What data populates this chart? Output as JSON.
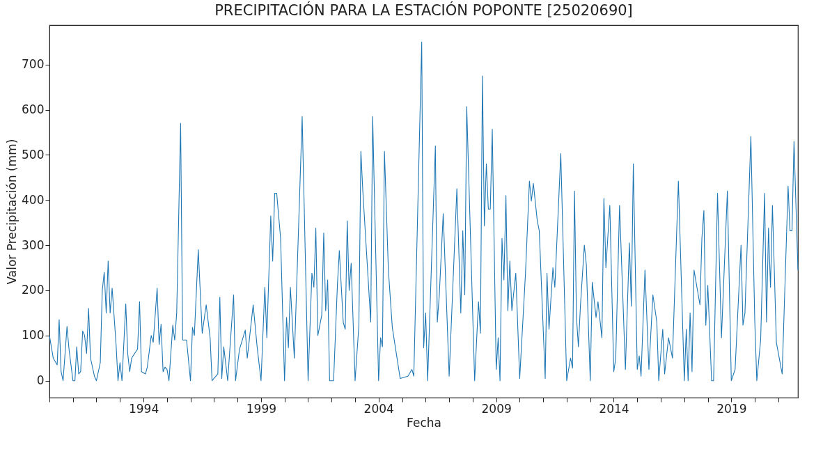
{
  "chart_data": {
    "type": "line",
    "title": "PRECIPITACIÓN PARA LA ESTACIÓN POPONTE [25020690]",
    "xlabel": "Fecha",
    "ylabel": "Valor Precipitación (mm)",
    "color": "#1f77b4",
    "grid": false,
    "xlim": [
      "1990-01",
      "2021-11"
    ],
    "ylim": [
      -37.5,
      787.5
    ],
    "xticks": [
      {
        "value": "1990",
        "label": null
      },
      {
        "value": "1991",
        "label": null
      },
      {
        "value": "1992",
        "label": null
      },
      {
        "value": "1993",
        "label": null
      },
      {
        "value": "1994",
        "label": "1994"
      },
      {
        "value": "1995",
        "label": null
      },
      {
        "value": "1996",
        "label": null
      },
      {
        "value": "1997",
        "label": null
      },
      {
        "value": "1998",
        "label": null
      },
      {
        "value": "1999",
        "label": "1999"
      },
      {
        "value": "2000",
        "label": null
      },
      {
        "value": "2001",
        "label": null
      },
      {
        "value": "2002",
        "label": null
      },
      {
        "value": "2003",
        "label": null
      },
      {
        "value": "2004",
        "label": "2004"
      },
      {
        "value": "2005",
        "label": null
      },
      {
        "value": "2006",
        "label": null
      },
      {
        "value": "2007",
        "label": null
      },
      {
        "value": "2008",
        "label": null
      },
      {
        "value": "2009",
        "label": "2009"
      },
      {
        "value": "2010",
        "label": null
      },
      {
        "value": "2011",
        "label": null
      },
      {
        "value": "2012",
        "label": null
      },
      {
        "value": "2013",
        "label": null
      },
      {
        "value": "2014",
        "label": "2014"
      },
      {
        "value": "2015",
        "label": null
      },
      {
        "value": "2016",
        "label": null
      },
      {
        "value": "2017",
        "label": null
      },
      {
        "value": "2018",
        "label": null
      },
      {
        "value": "2019",
        "label": "2019"
      },
      {
        "value": "2020",
        "label": null
      },
      {
        "value": "2021",
        "label": null
      }
    ],
    "yticks": [
      0,
      100,
      200,
      300,
      400,
      500,
      600,
      700
    ],
    "x": [
      "1990-01",
      "1990-03",
      "1990-05",
      "1990-06",
      "1990-07",
      "1990-08",
      "1990-10",
      "1990-11",
      "1991-01",
      "1991-02",
      "1991-03",
      "1991-04",
      "1991-05",
      "1991-06",
      "1991-07",
      "1991-08",
      "1991-09",
      "1991-10",
      "1991-12",
      "1992-01",
      "1992-03",
      "1992-04",
      "1992-05",
      "1992-06",
      "1992-07",
      "1992-08",
      "1992-09",
      "1992-11",
      "1992-12",
      "1993-01",
      "1993-02",
      "1993-04",
      "1993-05",
      "1993-06",
      "1993-07",
      "1993-10",
      "1993-11",
      "1993-12",
      "1994-02",
      "1994-03",
      "1994-05",
      "1994-06",
      "1994-08",
      "1994-09",
      "1994-10",
      "1994-11",
      "1994-12",
      "1995-01",
      "1995-02",
      "1995-04",
      "1995-05",
      "1995-06",
      "1995-08",
      "1995-09",
      "1995-11",
      "1996-01",
      "1996-02",
      "1996-03",
      "1996-05",
      "1996-07",
      "1996-09",
      "1996-11",
      "1996-12",
      "1997-03",
      "1997-04",
      "1997-05",
      "1997-06",
      "1997-08",
      "1997-11",
      "1997-12",
      "1998-02",
      "1998-05",
      "1998-06",
      "1998-09",
      "1998-11",
      "1999-01",
      "1999-03",
      "1999-04",
      "1999-06",
      "1999-07",
      "1999-08",
      "1999-09",
      "1999-11",
      "2000-01",
      "2000-02",
      "2000-03",
      "2000-04",
      "2000-06",
      "2000-10",
      "2001-01",
      "2001-03",
      "2001-04",
      "2001-05",
      "2001-06",
      "2001-08",
      "2001-09",
      "2001-10",
      "2001-11",
      "2001-12",
      "2002-02",
      "2002-04",
      "2002-05",
      "2002-07",
      "2002-08",
      "2002-09",
      "2002-10",
      "2002-11",
      "2003-01",
      "2003-03",
      "2003-04",
      "2003-05",
      "2003-09",
      "2003-10",
      "2004-01",
      "2004-02",
      "2004-03",
      "2004-04",
      "2004-06",
      "2004-08",
      "2004-12",
      "2005-04",
      "2005-06",
      "2005-07",
      "2005-11",
      "2005-12",
      "2006-01",
      "2006-02",
      "2006-06",
      "2006-07",
      "2006-08",
      "2006-10",
      "2007-01",
      "2007-05",
      "2007-07",
      "2007-08",
      "2007-09",
      "2007-10",
      "2008-02",
      "2008-04",
      "2008-05",
      "2008-06",
      "2008-07",
      "2008-08",
      "2008-09",
      "2008-10",
      "2008-11",
      "2009-01",
      "2009-02",
      "2009-03",
      "2009-04",
      "2009-05",
      "2009-06",
      "2009-07",
      "2009-08",
      "2009-09",
      "2009-11",
      "2010-01",
      "2010-04",
      "2010-06",
      "2010-07",
      "2010-08",
      "2010-10",
      "2010-11",
      "2011-02",
      "2011-03",
      "2011-04",
      "2011-06",
      "2011-07",
      "2011-10",
      "2012-01",
      "2012-03",
      "2012-04",
      "2012-05",
      "2012-06",
      "2012-07",
      "2012-08",
      "2012-10",
      "2012-11",
      "2013-01",
      "2013-02",
      "2013-04",
      "2013-05",
      "2013-07",
      "2013-08",
      "2013-09",
      "2013-11",
      "2014-01",
      "2014-02",
      "2014-04",
      "2014-07",
      "2014-09",
      "2014-10",
      "2014-11",
      "2015-01",
      "2015-02",
      "2015-03",
      "2015-05",
      "2015-07",
      "2015-09",
      "2015-11",
      "2015-12",
      "2016-02",
      "2016-03",
      "2016-05",
      "2016-07",
      "2016-10",
      "2017-01",
      "2017-02",
      "2017-03",
      "2017-04",
      "2017-05",
      "2017-06",
      "2017-09",
      "2017-10",
      "2017-11",
      "2017-12",
      "2018-01",
      "2018-03",
      "2018-04",
      "2018-06",
      "2018-08",
      "2018-11",
      "2019-01",
      "2019-03",
      "2019-06",
      "2019-07",
      "2019-08",
      "2019-11",
      "2020-01",
      "2020-02",
      "2020-04",
      "2020-06",
      "2020-07",
      "2020-08",
      "2020-09",
      "2020-10",
      "2020-12",
      "2021-03",
      "2021-06",
      "2021-07",
      "2021-08",
      "2021-09",
      "2021-11"
    ],
    "values": [
      100,
      50,
      35,
      135,
      20,
      0,
      120,
      70,
      0,
      0,
      75,
      15,
      20,
      110,
      100,
      60,
      160,
      50,
      10,
      0,
      40,
      200,
      240,
      150,
      265,
      150,
      205,
      80,
      0,
      40,
      0,
      170,
      60,
      20,
      50,
      70,
      175,
      20,
      15,
      30,
      100,
      85,
      205,
      80,
      125,
      20,
      30,
      25,
      0,
      123,
      90,
      150,
      570,
      90,
      90,
      0,
      118,
      100,
      290,
      105,
      168,
      95,
      0,
      15,
      185,
      5,
      75,
      0,
      190,
      0,
      70,
      112,
      50,
      168,
      75,
      0,
      207,
      95,
      365,
      265,
      415,
      415,
      315,
      0,
      140,
      73,
      207,
      50,
      585,
      0,
      238,
      207,
      338,
      100,
      145,
      327,
      155,
      223,
      0,
      0,
      211,
      288,
      129,
      114,
      354,
      200,
      260,
      0,
      123,
      508,
      420,
      130,
      585,
      0,
      95,
      75,
      508,
      245,
      118,
      5,
      10,
      25,
      10,
      750,
      73,
      150,
      0,
      520,
      130,
      190,
      370,
      10,
      425,
      150,
      332,
      190,
      607,
      0,
      175,
      105,
      675,
      343,
      480,
      380,
      380,
      557,
      25,
      95,
      0,
      315,
      223,
      410,
      155,
      265,
      155,
      238,
      5,
      238,
      442,
      398,
      437,
      354,
      332,
      5,
      238,
      114,
      250,
      207,
      503,
      0,
      50,
      28,
      420,
      140,
      75,
      165,
      300,
      257,
      0,
      218,
      140,
      175,
      95,
      404,
      250,
      388,
      20,
      50,
      388,
      25,
      305,
      165,
      480,
      25,
      55,
      10,
      245,
      25,
      190,
      130,
      0,
      114,
      15,
      95,
      50,
      442,
      0,
      114,
      0,
      150,
      20,
      245,
      168,
      315,
      377,
      123,
      211,
      0,
      0,
      415,
      95,
      420,
      0,
      25,
      300,
      123,
      150,
      541,
      130,
      0,
      90,
      415,
      130,
      338,
      207,
      388,
      85,
      15,
      431,
      332,
      332,
      530,
      245
    ]
  }
}
